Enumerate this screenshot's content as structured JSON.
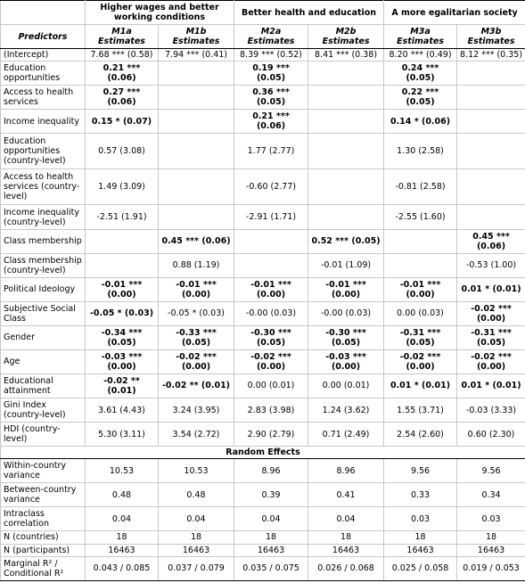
{
  "table": {
    "groups": [
      "Higher wages and better working conditions",
      "Better health and education",
      "A more egalitarian society"
    ],
    "corner": "Predictors",
    "columns": [
      [
        "M1a",
        "Estimates"
      ],
      [
        "M1b",
        "Estimates"
      ],
      [
        "M2a",
        "Estimates"
      ],
      [
        "M2b",
        "Estimates"
      ],
      [
        "M3a",
        "Estimates"
      ],
      [
        "M3b",
        "Estimates"
      ]
    ],
    "rows": [
      {
        "label": "(Intercept)",
        "cells": [
          "7.68 *** (0.58)",
          "7.94 *** (0.41)",
          "8.39 *** (0.52)",
          "8.41 *** (0.38)",
          "8.20 *** (0.49)",
          "8.12 *** (0.35)"
        ],
        "bold": []
      },
      {
        "label": "Education opportunities",
        "cells": [
          "0.21 *** (0.06)",
          null,
          "0.19 *** (0.05)",
          null,
          "0.24 *** (0.05)",
          null
        ],
        "bold": [
          0,
          2,
          4
        ]
      },
      {
        "label": "Access to health services",
        "cells": [
          "0.27 *** (0.06)",
          null,
          "0.36 *** (0.05)",
          null,
          "0.22 *** (0.05)",
          null
        ],
        "bold": [
          0,
          2,
          4
        ]
      },
      {
        "label": "Income inequality",
        "cells": [
          "0.15 * (0.07)",
          null,
          "0.21 *** (0.06)",
          null,
          "0.14 * (0.06)",
          null
        ],
        "bold": [
          0,
          2,
          4
        ]
      },
      {
        "label": "Education opportunities (country-level)",
        "cells": [
          "0.57 (3.08)",
          null,
          "1.77 (2.77)",
          null,
          "1.30 (2.58)",
          null
        ],
        "bold": []
      },
      {
        "label": "Access to health services (country-level)",
        "cells": [
          "1.49 (3.09)",
          null,
          "-0.60 (2.77)",
          null,
          "-0.81 (2.58)",
          null
        ],
        "bold": []
      },
      {
        "label": "Income inequality (country-level)",
        "cells": [
          "-2.51 (1.91)",
          null,
          "-2.91 (1.71)",
          null,
          "-2.55 (1.60)",
          null
        ],
        "bold": []
      },
      {
        "label": "Class membership",
        "cells": [
          null,
          "0.45 *** (0.06)",
          null,
          "0.52 *** (0.05)",
          null,
          "0.45 *** (0.06)"
        ],
        "bold": [
          1,
          3,
          5
        ]
      },
      {
        "label": "Class membership (country-level)",
        "cells": [
          null,
          "0.88 (1.19)",
          null,
          "-0.01 (1.09)",
          null,
          "-0.53 (1.00)"
        ],
        "bold": []
      },
      {
        "label": "Political Ideology",
        "cells": [
          "-0.01 *** (0.00)",
          "-0.01 *** (0.00)",
          "-0.01 *** (0.00)",
          "-0.01 *** (0.00)",
          "-0.01 *** (0.00)",
          "0.01 * (0.01)"
        ],
        "bold": [
          0,
          1,
          2,
          3,
          4,
          5
        ]
      },
      {
        "label": "Subjective Social Class",
        "cells": [
          "-0.05 * (0.03)",
          "-0.05 * (0.03)",
          "-0.00 (0.03)",
          "-0.00 (0.03)",
          "0.00 (0.03)",
          "-0.02 *** (0.00)"
        ],
        "bold": [
          0,
          5
        ]
      },
      {
        "label": "Gender",
        "cells": [
          "-0.34 *** (0.05)",
          "-0.33 *** (0.05)",
          "-0.30 *** (0.05)",
          "-0.30 *** (0.05)",
          "-0.31 *** (0.05)",
          "-0.31 *** (0.05)"
        ],
        "bold": [
          0,
          1,
          2,
          3,
          4,
          5
        ]
      },
      {
        "label": "Age",
        "cells": [
          "-0.03 *** (0.00)",
          "-0.02 *** (0.00)",
          "-0.02 *** (0.00)",
          "-0.03 *** (0.00)",
          "-0.02 *** (0.00)",
          "-0.02 *** (0.00)"
        ],
        "bold": [
          0,
          1,
          2,
          3,
          4,
          5
        ]
      },
      {
        "label": "Educational attainment",
        "cells": [
          "-0.02 ** (0.01)",
          "-0.02 ** (0.01)",
          "0.00 (0.01)",
          "0.00 (0.01)",
          "0.01 * (0.01)",
          "0.01 * (0.01)"
        ],
        "bold": [
          0,
          1,
          4,
          5
        ]
      },
      {
        "label": "Gini Index (country-level)",
        "cells": [
          "3.61 (4.43)",
          "3.24 (3.95)",
          "2.83 (3.98)",
          "1.24 (3.62)",
          "1.55 (3.71)",
          "-0.03 (3.33)"
        ],
        "bold": []
      },
      {
        "label": "HDI (country-level)",
        "cells": [
          "5.30 (3.11)",
          "3.54 (2.72)",
          "2.90 (2.79)",
          "0.71 (2.49)",
          "2.54 (2.60)",
          "0.60 (2.30)"
        ],
        "bold": []
      }
    ],
    "section": "Random Effects",
    "random": [
      {
        "label": "Within-country variance",
        "cells": [
          "10.53",
          "10.53",
          "8.96",
          "8.96",
          "9.56",
          "9.56"
        ]
      },
      {
        "label": "Between-country variance",
        "cells": [
          "0.48",
          "0.48",
          "0.39",
          "0.41",
          "0.33",
          "0.34"
        ]
      },
      {
        "label": "Intraclass correlation",
        "cells": [
          "0.04",
          "0.04",
          "0.04",
          "0.04",
          "0.03",
          "0.03"
        ]
      },
      {
        "label": "N (countries)",
        "cells": [
          "18",
          "18",
          "18",
          "18",
          "18",
          "18"
        ]
      },
      {
        "label": "N (participants)",
        "cells": [
          "16463",
          "16463",
          "16463",
          "16463",
          "16463",
          "16463"
        ]
      },
      {
        "label": "Marginal R² / Conditional R²",
        "cells": [
          "0.043 / 0.085",
          "0.037 / 0.079",
          "0.035 / 0.075",
          "0.026 / 0.068",
          "0.025 / 0.058",
          "0.019 / 0.053"
        ]
      }
    ]
  }
}
